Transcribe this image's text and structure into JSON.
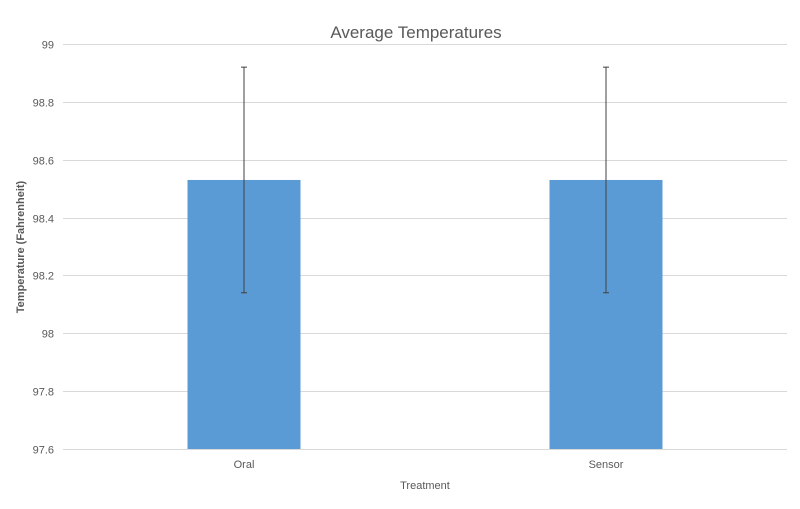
{
  "chart_data": {
    "type": "bar",
    "title": "Average Temperatures",
    "xlabel": "Treatment",
    "ylabel": "Temperature (Fahrenheit)",
    "categories": [
      "Oral",
      "Sensor"
    ],
    "values": [
      98.53,
      98.53
    ],
    "error_upper": [
      98.92,
      98.92
    ],
    "error_lower": [
      98.14,
      98.14
    ],
    "ylim": [
      97.6,
      99
    ],
    "yticks": [
      97.6,
      97.8,
      98,
      98.2,
      98.4,
      98.6,
      98.8,
      99
    ],
    "ytick_labels": [
      "97.6",
      "97.8",
      "98",
      "98.2",
      "98.4",
      "98.6",
      "98.8",
      "99"
    ],
    "grid": true,
    "bar_color": "#5B9BD5",
    "gridline_color": "#D9D9D9",
    "errorbar_color": "#404040"
  }
}
